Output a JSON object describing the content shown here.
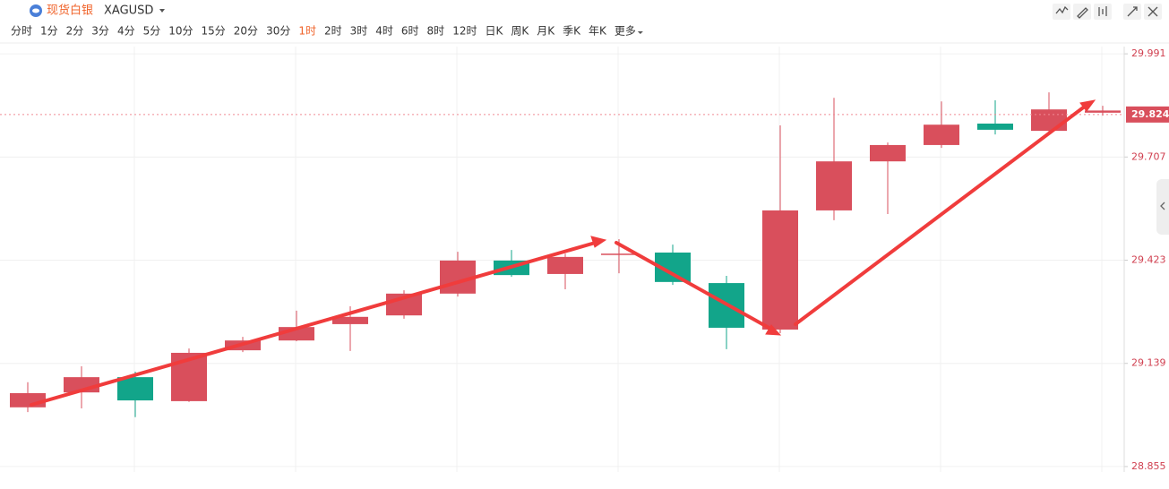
{
  "header": {
    "title": "现货白银",
    "symbol": "XAGUSD"
  },
  "periods": [
    "分时",
    "1分",
    "2分",
    "3分",
    "4分",
    "5分",
    "10分",
    "15分",
    "20分",
    "30分",
    "1时",
    "2时",
    "3时",
    "4时",
    "6时",
    "8时",
    "12时",
    "日K",
    "周K",
    "月K",
    "季K",
    "年K",
    "更多"
  ],
  "active_period": 10,
  "chart_data": {
    "type": "candlestick",
    "up_color": "#d94f5c",
    "down_color": "#12a58a",
    "open": [
      29.018,
      29.059,
      29.101,
      29.035,
      29.175,
      29.202,
      29.247,
      29.271,
      29.331,
      29.422,
      29.385,
      29.441,
      29.444,
      29.36,
      29.232,
      29.56,
      29.695,
      29.74,
      29.799,
      29.779,
      29.829
    ],
    "high": [
      29.087,
      29.131,
      29.116,
      29.18,
      29.212,
      29.284,
      29.296,
      29.34,
      29.446,
      29.451,
      29.441,
      29.481,
      29.466,
      29.38,
      29.794,
      29.87,
      29.747,
      29.86,
      29.863,
      29.885,
      29.848
    ],
    "low": [
      29.005,
      29.015,
      28.991,
      29.033,
      29.17,
      29.2,
      29.173,
      29.262,
      29.323,
      29.377,
      29.343,
      29.387,
      29.355,
      29.178,
      29.222,
      29.533,
      29.55,
      29.732,
      29.769,
      29.774,
      29.821
    ],
    "close": [
      29.057,
      29.101,
      29.037,
      29.168,
      29.202,
      29.239,
      29.267,
      29.331,
      29.422,
      29.382,
      29.432,
      29.441,
      29.363,
      29.237,
      29.56,
      29.695,
      29.74,
      29.796,
      29.782,
      29.838,
      29.835
    ],
    "ylim": [
      28.84,
      30.011
    ],
    "yticks": [
      28.855,
      29.139,
      29.423,
      29.707,
      29.991
    ],
    "last_price": 29.824,
    "grid": true
  }
}
